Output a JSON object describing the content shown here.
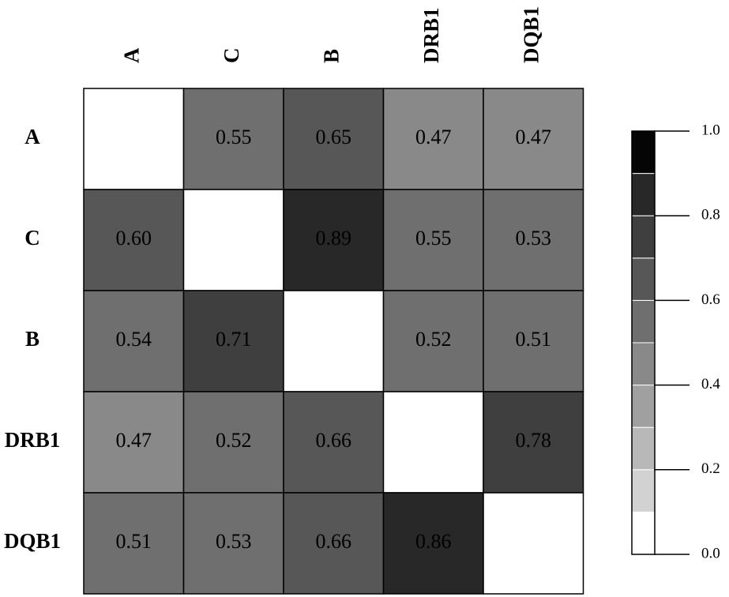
{
  "chart_data": {
    "type": "heatmap",
    "column_labels": [
      "A",
      "C",
      "B",
      "DRB1",
      "DQB1"
    ],
    "row_labels": [
      "A",
      "C",
      "B",
      "DRB1",
      "DQB1"
    ],
    "values": [
      [
        null,
        0.55,
        0.65,
        0.47,
        0.47
      ],
      [
        0.6,
        null,
        0.89,
        0.55,
        0.53
      ],
      [
        0.54,
        0.71,
        null,
        0.52,
        0.51
      ],
      [
        0.47,
        0.52,
        0.66,
        null,
        0.78
      ],
      [
        0.51,
        0.53,
        0.66,
        0.86,
        null
      ]
    ],
    "value_labels": [
      [
        "",
        "0.55",
        "0.65",
        "0.47",
        "0.47"
      ],
      [
        "0.60",
        "",
        "0.89",
        "0.55",
        "0.53"
      ],
      [
        "0.54",
        "0.71",
        "",
        "0.52",
        "0.51"
      ],
      [
        "0.47",
        "0.52",
        "0.66",
        "",
        "0.78"
      ],
      [
        "0.51",
        "0.53",
        "0.66",
        "0.86",
        ""
      ]
    ],
    "color_scale": {
      "range": [
        0.0,
        1.0
      ],
      "steps": 10,
      "palette": "white-to-black grayscale",
      "tick_values": [
        0.0,
        0.2,
        0.4,
        0.6,
        0.8,
        1.0
      ],
      "tick_labels": [
        "0.0",
        "0.2",
        "0.4",
        "0.6",
        "0.8",
        "1.0"
      ],
      "step_colors": [
        "#ffffff",
        "#d2d2d2",
        "#b8b8b8",
        "#a0a0a0",
        "#898989",
        "#6f6f6f",
        "#575757",
        "#3f3f3f",
        "#282828",
        "#050505"
      ]
    },
    "diagonal_color": "#ffffff",
    "grid": true,
    "legend": "right"
  }
}
